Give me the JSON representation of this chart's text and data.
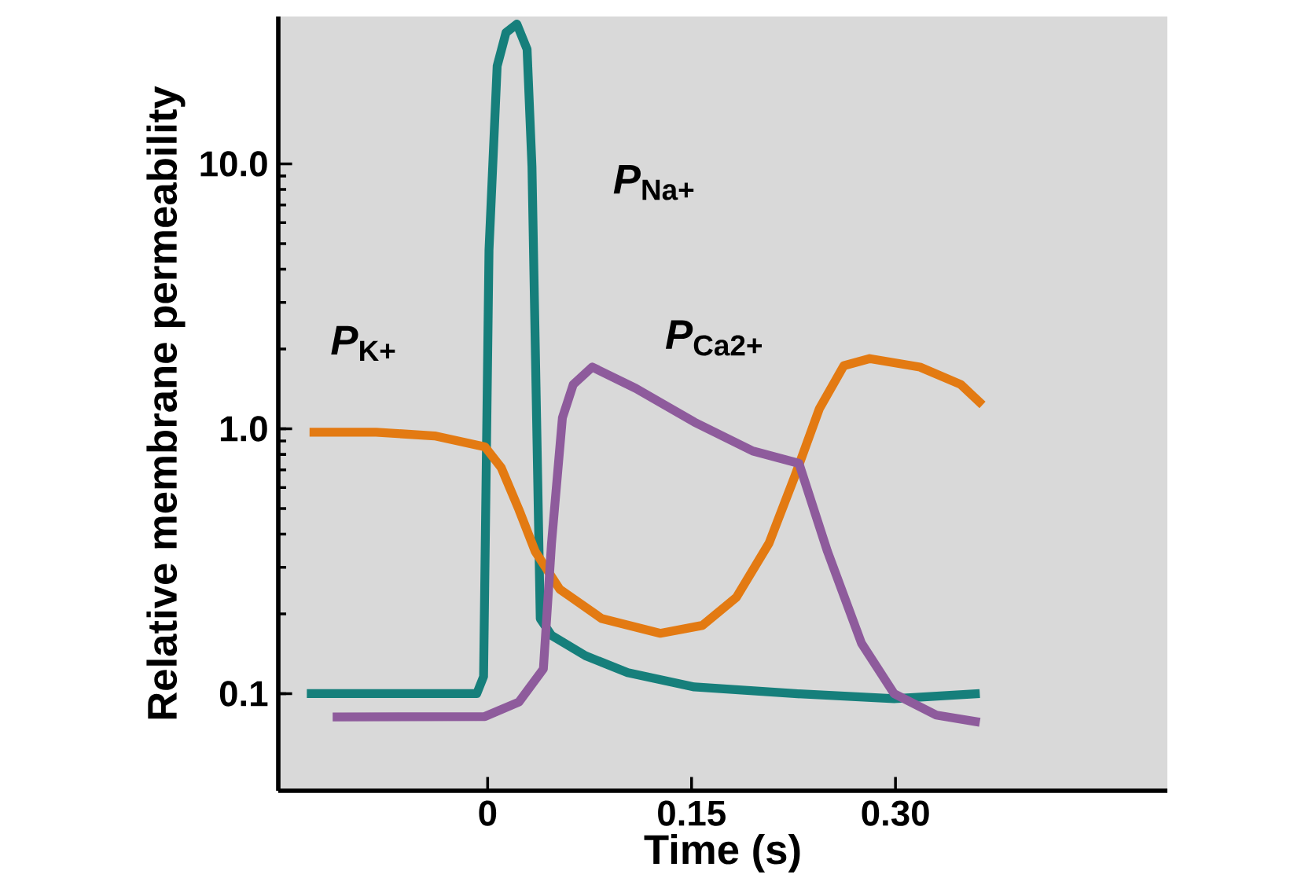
{
  "chart_data": {
    "type": "line",
    "xlabel": "Time (s)",
    "ylabel": "Relative membrane permeability",
    "log": true,
    "xlim": [
      -0.154,
      0.5
    ],
    "ylim": [
      0.043,
      36
    ],
    "xticks": [
      0,
      0.15,
      {
        "value": 0.3,
        "label": "0.30"
      }
    ],
    "yticks": [
      0.1,
      {
        "value": 1,
        "label": "1.0"
      },
      {
        "value": 10,
        "label": "10.0"
      }
    ],
    "series": [
      {
        "name": "*P*$_{Na+}$",
        "color": "#167f7b",
        "x": [
          -0.133,
          -0.008,
          -0.003,
          0.001,
          0.007,
          0.0135,
          0.0215,
          0.029,
          0.0326,
          0.036,
          0.0387,
          0.047,
          0.072,
          0.103,
          0.152,
          0.226,
          0.299,
          0.362
        ],
        "values": [
          0.1,
          0.1,
          0.116,
          4.73,
          23.4,
          31.3,
          33.7,
          27.1,
          9.8,
          1.1,
          0.192,
          0.166,
          0.139,
          0.12,
          0.106,
          0.1,
          0.0957,
          0.1
        ]
      },
      {
        "name": "*P*$_{K+}$",
        "color": "#e37a12",
        "x": [
          -0.131,
          -0.082,
          -0.039,
          -0.002,
          0.01,
          0.023,
          0.035,
          0.053,
          0.084,
          0.127,
          0.158,
          0.183,
          0.207,
          0.226,
          0.244,
          0.262,
          0.281,
          0.318,
          0.348,
          0.364
        ],
        "values": [
          0.97,
          0.97,
          0.94,
          0.855,
          0.713,
          0.495,
          0.344,
          0.248,
          0.192,
          0.169,
          0.181,
          0.231,
          0.37,
          0.663,
          1.19,
          1.73,
          1.84,
          1.71,
          1.47,
          1.23
        ]
      },
      {
        "name": "*P*$_{Ca2+}$",
        "color": "#8e5b9c",
        "x": [
          -0.114,
          -0.002,
          0.023,
          0.041,
          0.047,
          0.055,
          0.063,
          0.077,
          0.109,
          0.152,
          0.195,
          0.229,
          0.25,
          0.275,
          0.299,
          0.33,
          0.362
        ],
        "values": [
          0.0816,
          0.082,
          0.093,
          0.124,
          0.37,
          1.1,
          1.47,
          1.71,
          1.42,
          1.06,
          0.824,
          0.74,
          0.344,
          0.155,
          0.1,
          0.083,
          0.078
        ]
      }
    ]
  }
}
